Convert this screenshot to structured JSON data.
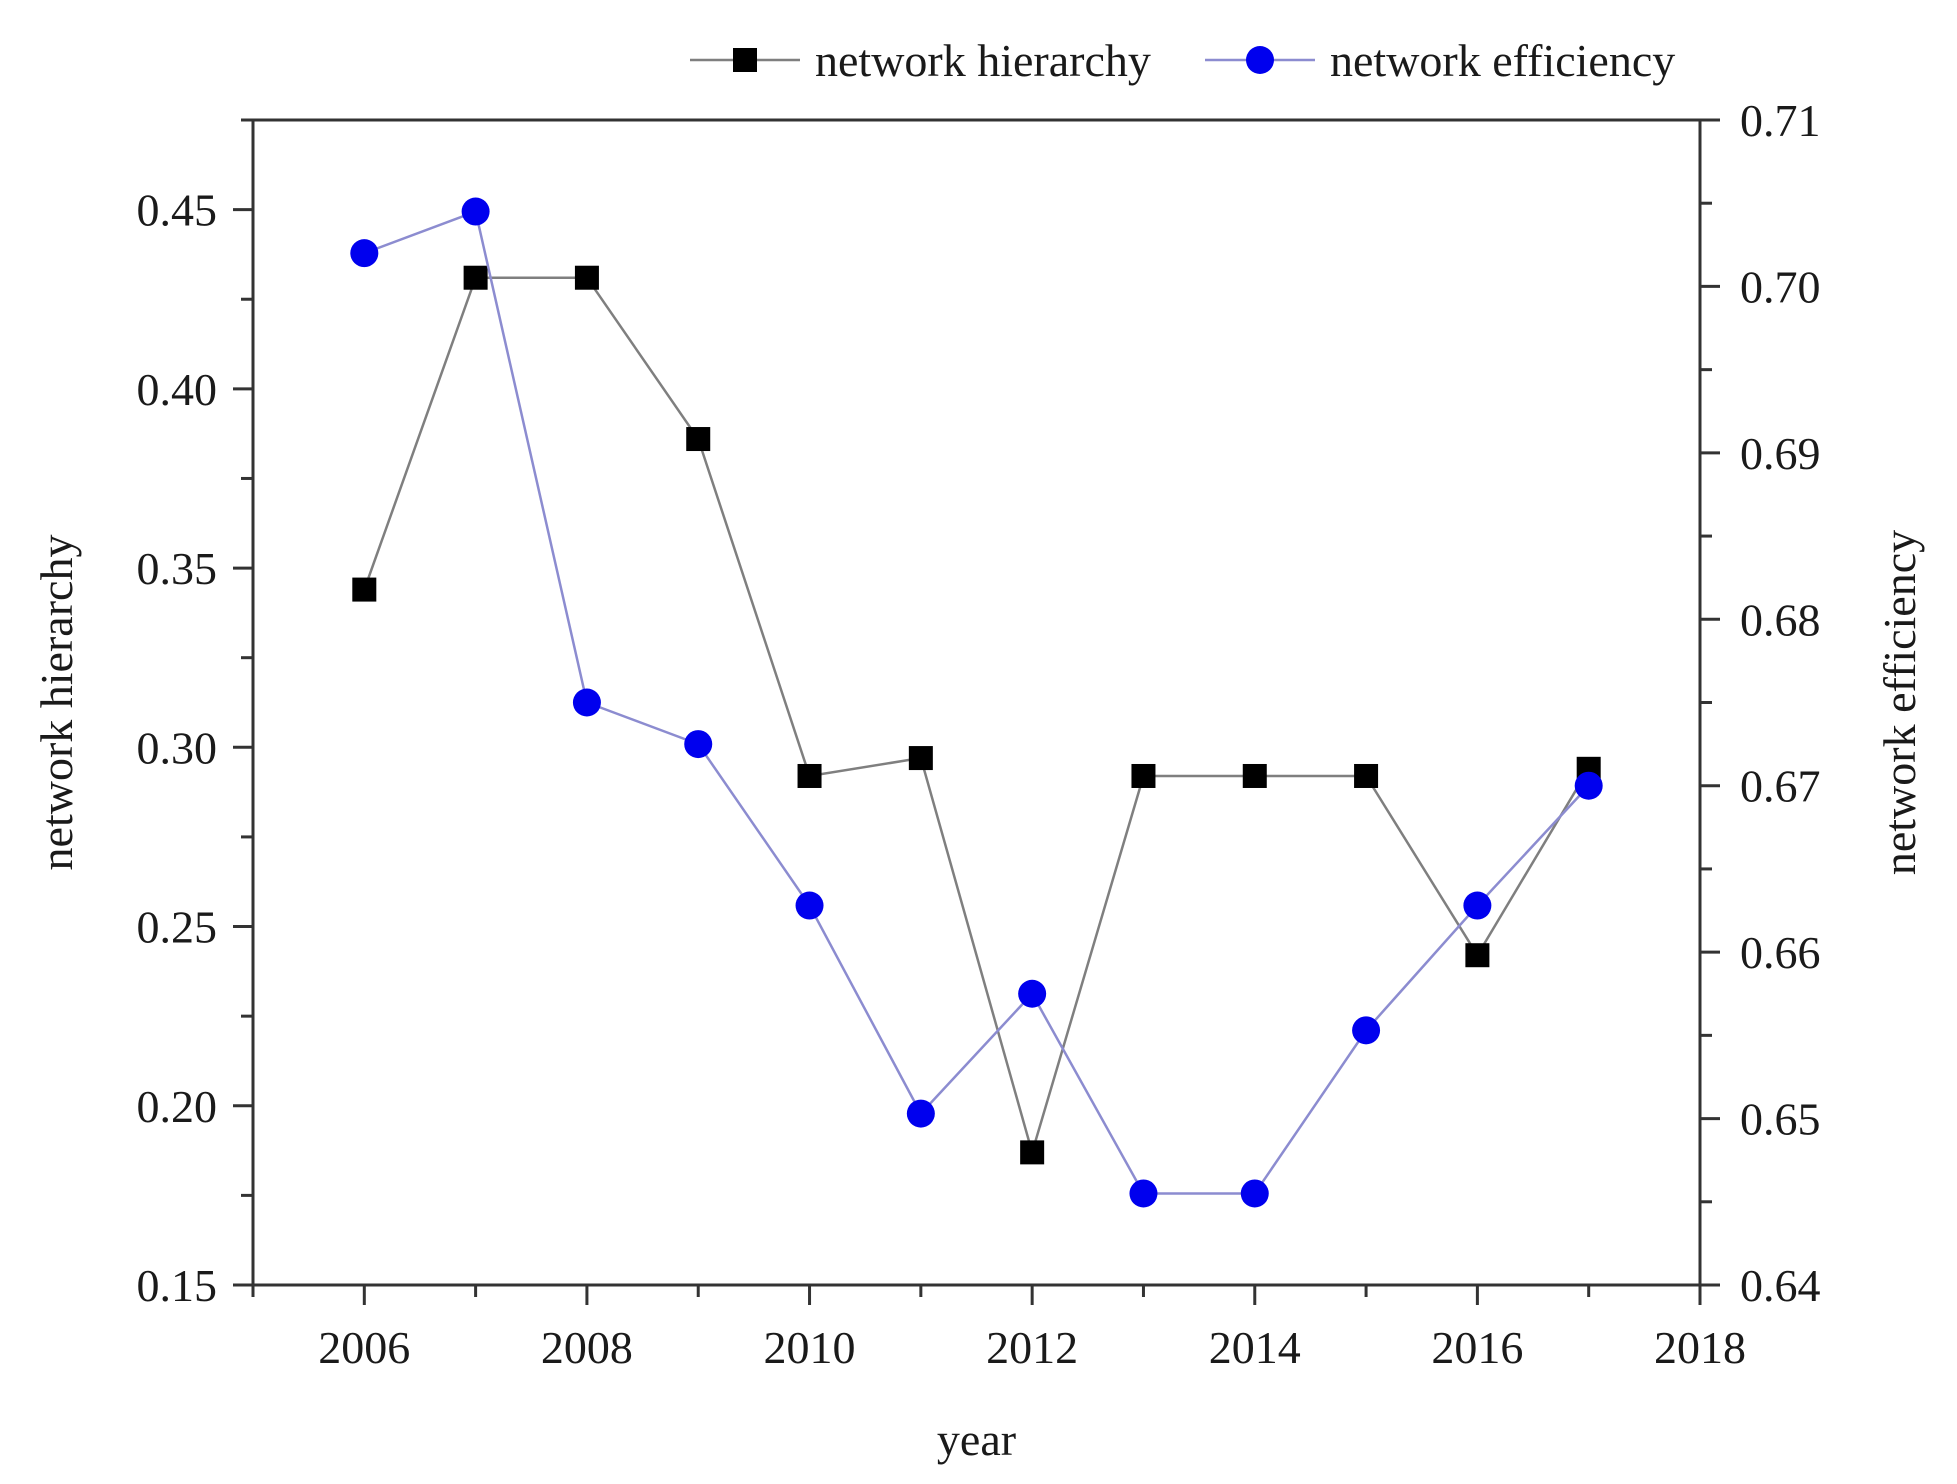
{
  "chart_data": {
    "type": "line",
    "xlabel": "year",
    "ylabel_left": "network hierarchy",
    "ylabel_right": "network efficiency",
    "x": [
      2006,
      2007,
      2008,
      2009,
      2010,
      2011,
      2012,
      2013,
      2014,
      2015,
      2016,
      2017
    ],
    "xlim": [
      2005,
      2018
    ],
    "x_ticks": [
      "2006",
      "2008",
      "2010",
      "2012",
      "2014",
      "2016",
      "2018"
    ],
    "ylim_left": [
      0.15,
      0.475
    ],
    "y_ticks_left": [
      "0.15",
      "0.20",
      "0.25",
      "0.30",
      "0.35",
      "0.40",
      "0.45"
    ],
    "ylim_right": [
      0.64,
      0.71
    ],
    "y_ticks_right": [
      "0.64",
      "0.65",
      "0.66",
      "0.67",
      "0.68",
      "0.69",
      "0.70",
      "0.71"
    ],
    "legend_position": "top",
    "grid": false,
    "series": [
      {
        "name": "network hierarchy",
        "axis": "left",
        "marker": "square",
        "color": "#000000",
        "line_color": "#7f7f7f",
        "values": [
          0.344,
          0.431,
          0.431,
          0.386,
          0.292,
          0.297,
          0.187,
          0.292,
          0.292,
          0.292,
          0.242,
          0.294
        ]
      },
      {
        "name": "network efficiency",
        "axis": "right",
        "marker": "circle",
        "color": "#0000ee",
        "line_color": "#8c8cd0",
        "values": [
          0.702,
          0.7045,
          0.675,
          0.6725,
          0.6628,
          0.6503,
          0.6575,
          0.6455,
          0.6455,
          0.6553,
          0.6628,
          0.67
        ]
      }
    ]
  }
}
